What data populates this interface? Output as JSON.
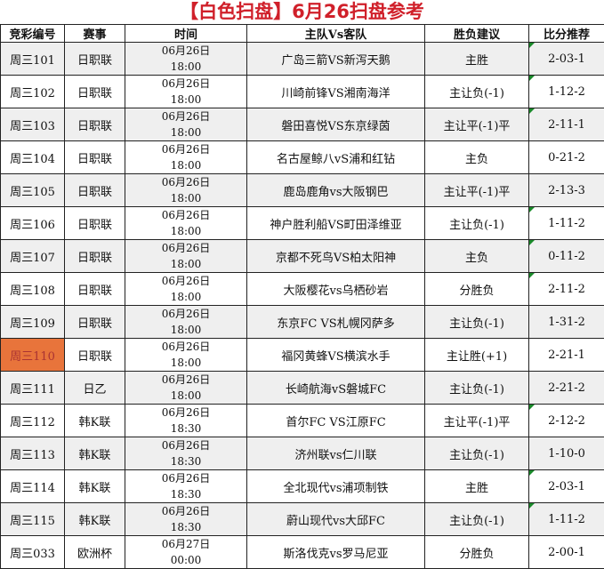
{
  "title": "【白色扫盘】6月26扫盘参考",
  "headers": [
    "竞彩编号",
    "赛事",
    "时间",
    "主队Vs客队",
    "胜负建议",
    "比分推荐"
  ],
  "colors": {
    "title": "#d0202a",
    "highlight": "#e8743b",
    "comment_marker": "#1a8a2a",
    "alt_row": "#efefef"
  },
  "rows": [
    {
      "id": "周三101",
      "league": "日职联",
      "date": "06月26日",
      "time": "18:00",
      "match": "广岛三箭VS新泻天鹅",
      "tip": "主胜",
      "score": "2-03-1",
      "marker": true
    },
    {
      "id": "周三102",
      "league": "日职联",
      "date": "06月26日",
      "time": "18:00",
      "match": "川崎前锋VS湘南海洋",
      "tip": "主让负(-1)",
      "score": "1-12-2",
      "marker": true
    },
    {
      "id": "周三103",
      "league": "日职联",
      "date": "06月26日",
      "time": "18:00",
      "match": "磐田喜悦VS东京绿茵",
      "tip": "主让平(-1)平",
      "score": "2-11-1",
      "marker": true
    },
    {
      "id": "周三104",
      "league": "日职联",
      "date": "06月26日",
      "time": "18:00",
      "match": "名古屋鲸八vS浦和红钻",
      "tip": "主负",
      "score": "0-21-2",
      "marker": false
    },
    {
      "id": "周三105",
      "league": "日职联",
      "date": "06月26日",
      "time": "18:00",
      "match": "鹿岛鹿角vs大阪钢巴",
      "tip": "主让平(-1)平",
      "score": "2-13-3",
      "marker": false
    },
    {
      "id": "周三106",
      "league": "日职联",
      "date": "06月26日",
      "time": "18:00",
      "match": "神户胜利船VS町田泽维亚",
      "tip": "主让负(-1)",
      "score": "1-11-2",
      "marker": true
    },
    {
      "id": "周三107",
      "league": "日职联",
      "date": "06月26日",
      "time": "18:00",
      "match": "京都不死鸟VS柏太阳神",
      "tip": "主负",
      "score": "0-11-2",
      "marker": true
    },
    {
      "id": "周三108",
      "league": "日职联",
      "date": "06月26日",
      "time": "18:00",
      "match": "大阪樱花vs乌栖砂岩",
      "tip": "分胜负",
      "score": "2-11-2",
      "marker": true
    },
    {
      "id": "周三109",
      "league": "日职联",
      "date": "06月26日",
      "time": "18:00",
      "match": "东京FC VS札幌冈萨多",
      "tip": "主让负(-1)",
      "score": "1-31-2",
      "marker": false
    },
    {
      "id": "周三110",
      "league": "日职联",
      "date": "06月26日",
      "time": "18:00",
      "match": "福冈黄蜂VS横滨水手",
      "tip": "主让胜(+1)",
      "score": "2-21-1",
      "marker": false,
      "highlight": true
    },
    {
      "id": "周三111",
      "league": "日乙",
      "date": "06月26日",
      "time": "18:00",
      "match": "长崎航海vS磐城FC",
      "tip": "主让负(-1)",
      "score": "2-21-2",
      "marker": false
    },
    {
      "id": "周三112",
      "league": "韩K联",
      "date": "06月26日",
      "time": "18:30",
      "match": "首尔FC VS江原FC",
      "tip": "主让平(-1)平",
      "score": "2-12-2",
      "marker": true
    },
    {
      "id": "周三113",
      "league": "韩K联",
      "date": "06月26日",
      "time": "18:30",
      "match": "济州联vs仁川联",
      "tip": "主让负(-1)",
      "score": "1-10-0",
      "marker": false
    },
    {
      "id": "周三114",
      "league": "韩K联",
      "date": "06月26日",
      "time": "18:30",
      "match": "全北现代vs浦项制铁",
      "tip": "主胜",
      "score": "2-03-1",
      "marker": true
    },
    {
      "id": "周三115",
      "league": "韩K联",
      "date": "06月26日",
      "time": "18:30",
      "match": "蔚山现代vs大邱FC",
      "tip": "主让负(-1)",
      "score": "1-11-2",
      "marker": true
    },
    {
      "id": "周三033",
      "league": "欧洲杯",
      "date": "06月27日",
      "time": "00:00",
      "match": "斯洛伐克vs罗马尼亚",
      "tip": "分胜负",
      "score": "2-00-1",
      "marker": false
    }
  ]
}
